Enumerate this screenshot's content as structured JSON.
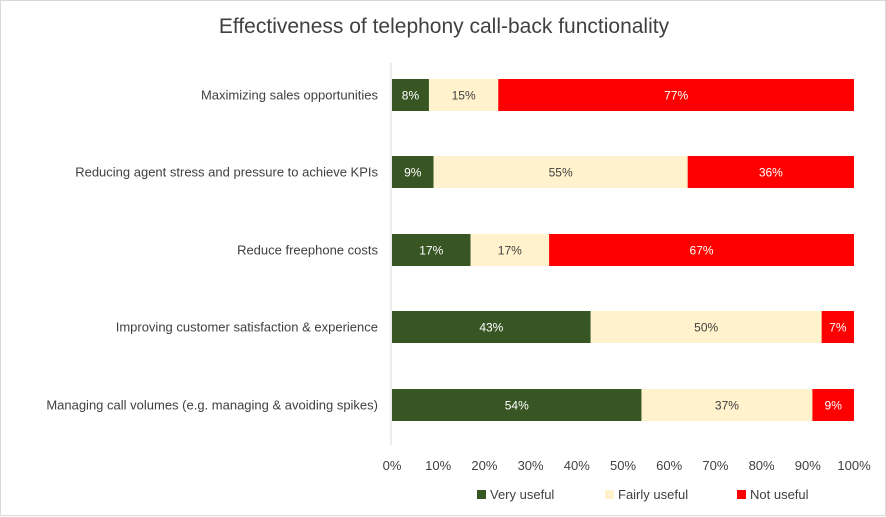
{
  "chart_data": {
    "type": "bar",
    "orientation": "horizontal",
    "stacked": true,
    "title": "Effectiveness of telephony call-back functionality",
    "categories": [
      "Maximizing sales opportunities",
      "Reducing agent stress and pressure to achieve KPIs",
      "Reduce freephone costs",
      "Improving customer satisfaction & experience",
      "Managing call volumes (e.g. managing & avoiding spikes)"
    ],
    "series": [
      {
        "name": "Very useful",
        "color": "#375623",
        "label_color": "#ffffff",
        "values": [
          8,
          9,
          17,
          43,
          54
        ]
      },
      {
        "name": "Fairly useful",
        "color": "#fff2cc",
        "label_color": "#404040",
        "values": [
          15,
          55,
          17,
          50,
          37
        ]
      },
      {
        "name": "Not useful",
        "color": "#ff0000",
        "label_color": "#ffffff",
        "values": [
          77,
          36,
          67,
          7,
          9
        ]
      }
    ],
    "data_labels": [
      [
        "8%",
        "9%",
        "17%",
        "43%",
        "54%"
      ],
      [
        "15%",
        "55%",
        "17%",
        "50%",
        "37%"
      ],
      [
        "77%",
        "36%",
        "67%",
        "7%",
        "9%"
      ]
    ],
    "xlim": [
      0,
      100
    ],
    "x_ticks": [
      "0%",
      "10%",
      "20%",
      "30%",
      "40%",
      "50%",
      "60%",
      "70%",
      "80%",
      "90%",
      "100%"
    ],
    "grid": false,
    "legend_position": "bottom-right"
  }
}
